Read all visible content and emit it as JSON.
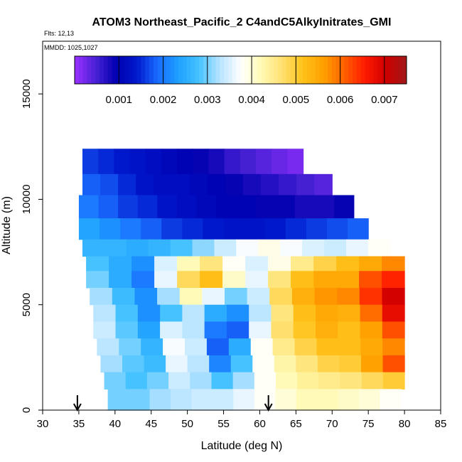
{
  "chart_data": {
    "type": "heatmap",
    "title": "ATOM3 Northeast_Pacific_2 C4andC5AlkyInitrates_GMI",
    "flights_text": "Flts: 12,13",
    "dates_text": "MMDD: 1025,1027",
    "xlabel": "Latitude (deg N)",
    "ylabel": "Altitude (m)",
    "xlim": [
      30,
      85
    ],
    "ylim": [
      0,
      17500
    ],
    "x_ticks": [
      30,
      35,
      40,
      45,
      50,
      55,
      60,
      65,
      70,
      75,
      80,
      85
    ],
    "y_ticks": [
      0,
      5000,
      10000,
      15000
    ],
    "colorbar": {
      "min": 0.0,
      "max": 0.0075,
      "ticks": [
        0.001,
        0.002,
        0.003,
        0.004,
        0.005,
        0.006,
        0.007
      ],
      "tick_labels": [
        "0.001",
        "0.002",
        "0.003",
        "0.004",
        "0.005",
        "0.006",
        "0.007"
      ],
      "colors": [
        "#9b30ff",
        "#4a22d6",
        "#0000b0",
        "#0018cc",
        "#1a6cff",
        "#1ea0ff",
        "#46c3ff",
        "#b9e4ff",
        "#ffffff",
        "#fffab5",
        "#ffe070",
        "#ffc21a",
        "#ffa000",
        "#ff6000",
        "#ff1a00",
        "#d00000",
        "#a01818"
      ]
    },
    "arrows_lat": [
      34.8,
      61.2
    ],
    "grid": false,
    "legend": "top (horizontal colorbar)",
    "altitude_bands": [
      {
        "alt_top": 12400,
        "alt_bot": 11200,
        "lat_min": 35.5,
        "lat_max": 66,
        "values": [
          0.0016,
          0.0015,
          0.0014,
          0.0013,
          0.0012,
          0.0011,
          0.001,
          0.0009,
          0.0008,
          0.0006,
          0.0005,
          0.0004,
          0.0003,
          0.0002
        ]
      },
      {
        "alt_top": 11200,
        "alt_bot": 10200,
        "lat_min": 35.5,
        "lat_max": 70,
        "values": [
          0.0018,
          0.0017,
          0.0015,
          0.0013,
          0.0012,
          0.0012,
          0.0011,
          0.001,
          0.0009,
          0.0008,
          0.0007,
          0.0006,
          0.0005,
          0.0004
        ]
      },
      {
        "alt_top": 10200,
        "alt_bot": 9100,
        "lat_min": 35,
        "lat_max": 73,
        "values": [
          0.002,
          0.0018,
          0.0016,
          0.0015,
          0.0013,
          0.0012,
          0.0011,
          0.001,
          0.001,
          0.0009,
          0.0009,
          0.0008,
          0.0008,
          0.0009
        ]
      },
      {
        "alt_top": 9100,
        "alt_bot": 8100,
        "lat_min": 35,
        "lat_max": 75,
        "values": [
          0.0024,
          0.0022,
          0.002,
          0.0018,
          0.0016,
          0.0015,
          0.0014,
          0.0013,
          0.0013,
          0.0014,
          0.0015,
          0.0016,
          0.0017,
          0.0018
        ]
      },
      {
        "alt_top": 8100,
        "alt_bot": 7300,
        "lat_min": 35.5,
        "lat_max": 78,
        "values": [
          0.0026,
          0.0026,
          0.0025,
          0.0026,
          0.0028,
          0.0031,
          0.0034,
          0.0037,
          0.0039,
          0.0037,
          0.0035,
          0.0034,
          0.0036,
          0.0038
        ]
      },
      {
        "alt_top": 7300,
        "alt_bot": 6600,
        "lat_min": 36,
        "lat_max": 80,
        "values": [
          0.0028,
          0.0025,
          0.0022,
          0.0035,
          0.0042,
          0.0046,
          0.0038,
          0.0035,
          0.0039,
          0.0045,
          0.0049,
          0.0052,
          0.0055,
          0.0058
        ]
      },
      {
        "alt_top": 6600,
        "alt_bot": 5800,
        "lat_min": 36,
        "lat_max": 80,
        "values": [
          0.003,
          0.0025,
          0.002,
          0.0036,
          0.0048,
          0.0052,
          0.0041,
          0.0036,
          0.0046,
          0.0052,
          0.0055,
          0.0055,
          0.0062,
          0.0065
        ]
      },
      {
        "alt_top": 5800,
        "alt_bot": 5000,
        "lat_min": 36.5,
        "lat_max": 80,
        "values": [
          0.0032,
          0.0027,
          0.0022,
          0.0032,
          0.0042,
          0.0036,
          0.003,
          0.0034,
          0.0048,
          0.0054,
          0.0057,
          0.0058,
          0.0064,
          0.007
        ]
      },
      {
        "alt_top": 5000,
        "alt_bot": 4200,
        "lat_min": 37,
        "lat_max": 80,
        "values": [
          0.0033,
          0.0028,
          0.0022,
          0.0028,
          0.0033,
          0.0025,
          0.0022,
          0.0033,
          0.0046,
          0.0052,
          0.0055,
          0.0054,
          0.006,
          0.0068
        ]
      },
      {
        "alt_top": 4200,
        "alt_bot": 3400,
        "lat_min": 37,
        "lat_max": 80,
        "values": [
          0.0034,
          0.0029,
          0.0024,
          0.0035,
          0.0033,
          0.002,
          0.0018,
          0.0036,
          0.0047,
          0.0051,
          0.0054,
          0.0052,
          0.0056,
          0.0062
        ]
      },
      {
        "alt_top": 3400,
        "alt_bot": 2600,
        "lat_min": 37.5,
        "lat_max": 80,
        "values": [
          0.0033,
          0.003,
          0.0026,
          0.0037,
          0.0034,
          0.0018,
          0.0025,
          0.0038,
          0.0045,
          0.0049,
          0.0052,
          0.0052,
          0.0055,
          0.0058
        ]
      },
      {
        "alt_top": 2600,
        "alt_bot": 1800,
        "lat_min": 38,
        "lat_max": 80,
        "values": [
          0.0032,
          0.0029,
          0.0027,
          0.0036,
          0.0033,
          0.0021,
          0.0028,
          0.0038,
          0.0043,
          0.0046,
          0.0049,
          0.005,
          0.0056,
          0.0062
        ]
      },
      {
        "alt_top": 1800,
        "alt_bot": 1000,
        "lat_min": 38.5,
        "lat_max": 80,
        "values": [
          0.003,
          0.0028,
          0.003,
          0.0034,
          0.0032,
          0.0028,
          0.0032,
          0.0038,
          0.0042,
          0.0044,
          0.0045,
          0.0046,
          0.0048,
          0.005
        ]
      },
      {
        "alt_top": 1000,
        "alt_bot": 0,
        "lat_min": 39,
        "lat_max": 79.5,
        "values": [
          0.003,
          0.003,
          0.0032,
          0.0033,
          0.0034,
          0.0034,
          0.0036,
          0.0038,
          0.004,
          0.0042,
          0.0042,
          0.0041,
          0.004,
          0.0038
        ]
      }
    ]
  }
}
